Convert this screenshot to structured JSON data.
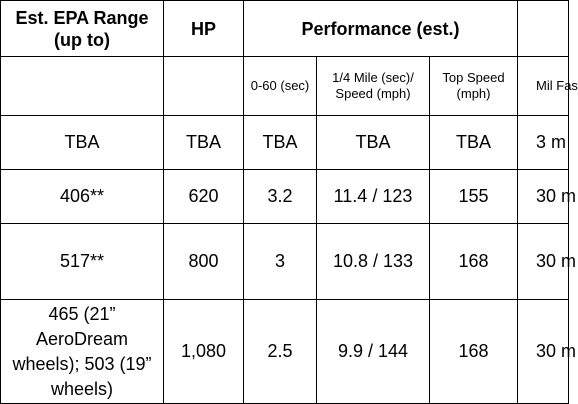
{
  "header": {
    "range": "Est. EPA Range (up to)",
    "hp": "HP",
    "performance": "Performance (est.)"
  },
  "subheader": {
    "zero_sixty": "0-60 (sec)",
    "quarter_mile": "1/4 Mile (sec)/ Speed (mph)",
    "top_speed": "Top Speed (mph)",
    "partial_col": "Mil Fas"
  },
  "rows": [
    {
      "range": "TBA",
      "hp": "TBA",
      "zero_sixty": "TBA",
      "quarter_mile": "TBA",
      "top_speed": "TBA",
      "partial": "3 m"
    },
    {
      "range": "406**",
      "hp": "620",
      "zero_sixty": "3.2",
      "quarter_mile": "11.4 / 123",
      "top_speed": "155",
      "partial": "30 m"
    },
    {
      "range": "517**",
      "hp": "800",
      "zero_sixty": "3",
      "quarter_mile": "10.8 / 133",
      "top_speed": "168",
      "partial": "30 m"
    },
    {
      "range": "465 (21” AeroDream wheels); 503 (19” wheels)",
      "hp": "1,080",
      "zero_sixty": "2.5",
      "quarter_mile": "9.9 / 144",
      "top_speed": "168",
      "partial": "30 m"
    }
  ]
}
